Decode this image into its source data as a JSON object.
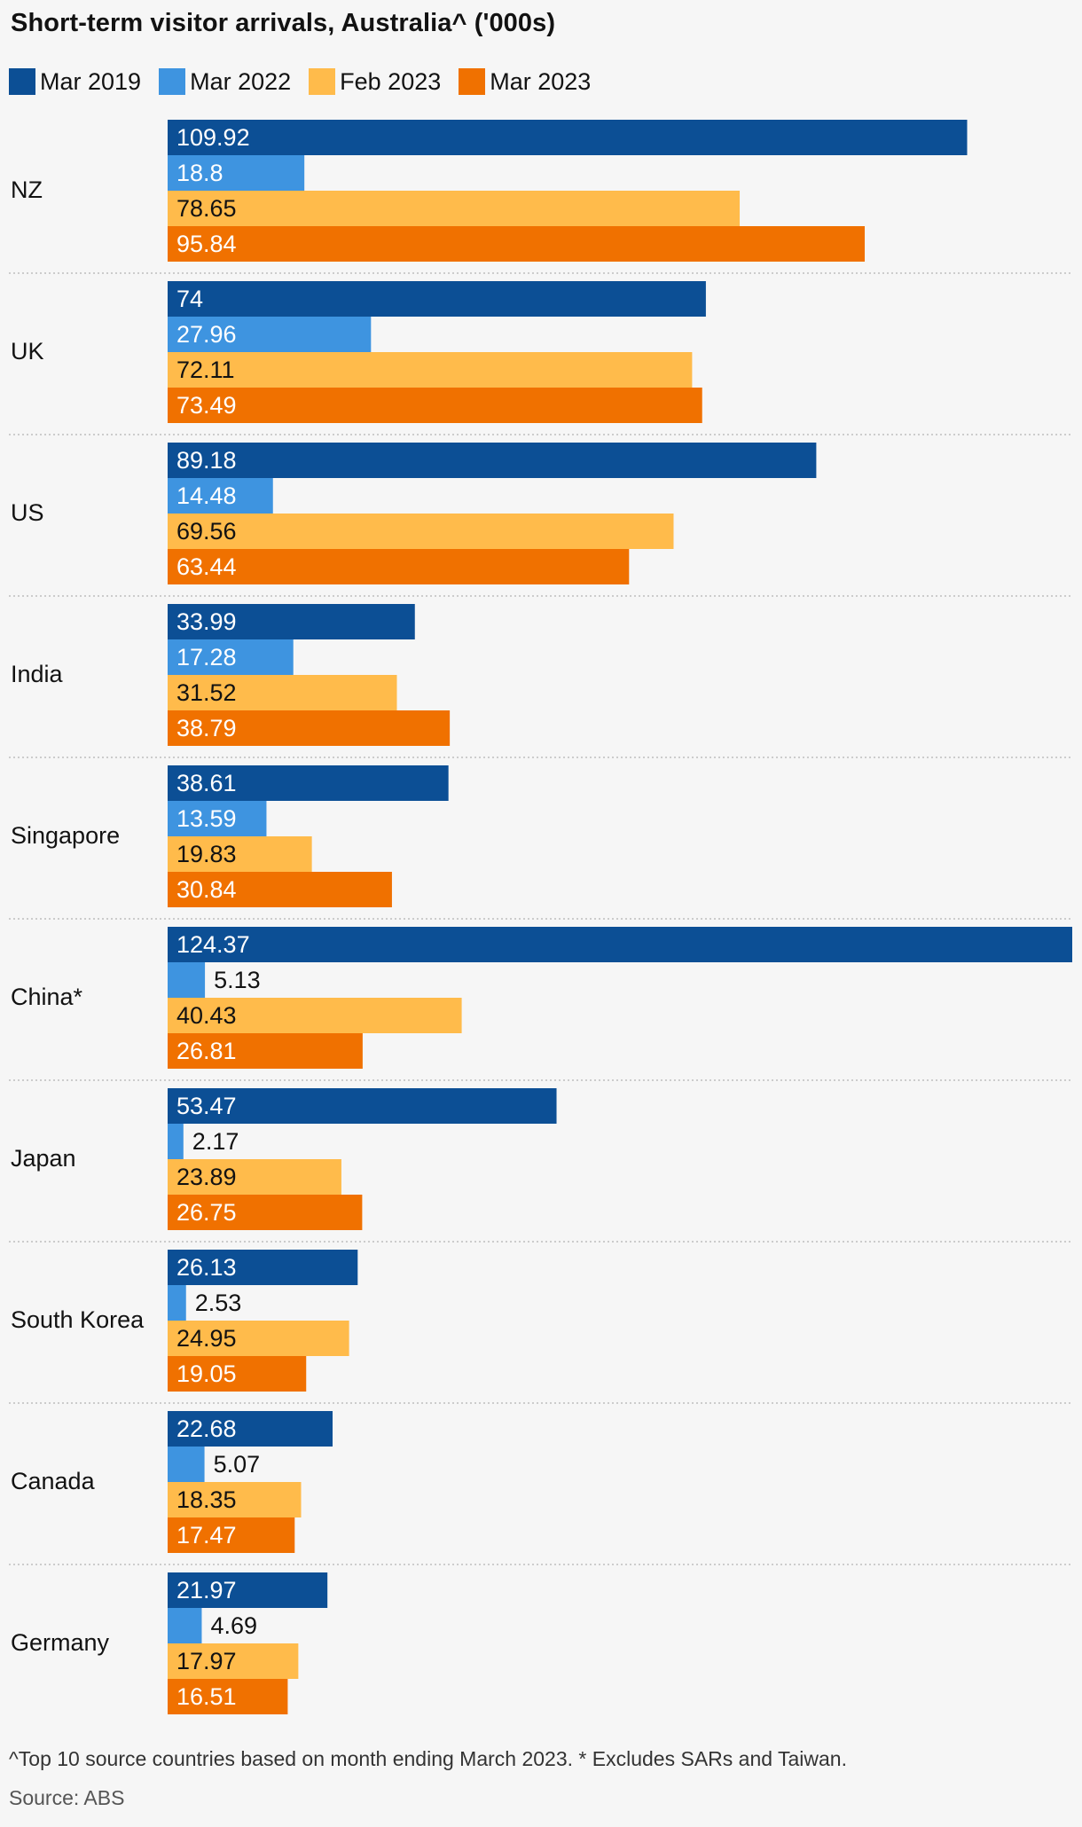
{
  "chart_data": {
    "type": "bar",
    "orientation": "horizontal",
    "title": "Short-term visitor arrivals, Australia^ ('000s)",
    "categories": [
      "NZ",
      "UK",
      "US",
      "India",
      "Singapore",
      "China*",
      "Japan",
      "South Korea",
      "Canada",
      "Germany"
    ],
    "series": [
      {
        "name": "Mar 2019",
        "color": "#0c4f95",
        "values": [
          109.92,
          74,
          89.18,
          33.99,
          38.61,
          124.37,
          53.47,
          26.13,
          22.68,
          21.97
        ]
      },
      {
        "name": "Mar 2022",
        "color": "#3e94e0",
        "values": [
          18.8,
          27.96,
          14.48,
          17.28,
          13.59,
          5.13,
          2.17,
          2.53,
          5.07,
          4.69
        ]
      },
      {
        "name": "Feb 2023",
        "color": "#ffbb4b",
        "values": [
          78.65,
          72.11,
          69.56,
          31.52,
          19.83,
          40.43,
          23.89,
          24.95,
          18.35,
          17.97
        ]
      },
      {
        "name": "Mar 2023",
        "color": "#f07100",
        "values": [
          95.84,
          73.49,
          63.44,
          38.79,
          30.84,
          26.81,
          26.75,
          19.05,
          17.47,
          16.51
        ]
      }
    ],
    "xlim": [
      0,
      124.37
    ],
    "legend": "top-left",
    "grid": false,
    "data_labels": true
  },
  "footnote": "^Top 10 source countries based on month ending March 2023. * Excludes SARs and Taiwan.",
  "source": "Source: ABS"
}
